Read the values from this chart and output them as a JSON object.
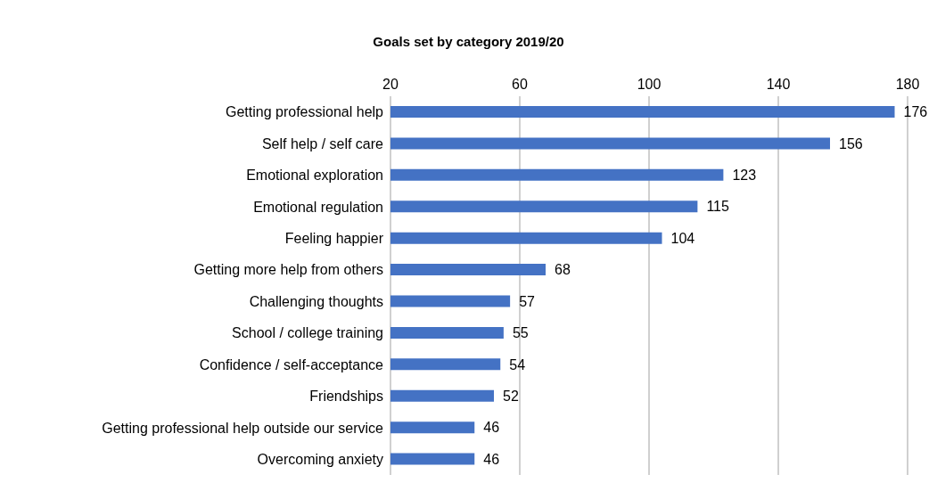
{
  "chart_data": {
    "type": "bar",
    "orientation": "horizontal",
    "title": "Goals set by category 2019/20",
    "categories": [
      "Getting professional help",
      "Self help / self care",
      "Emotional exploration",
      "Emotional regulation",
      "Feeling happier",
      "Getting more help from others",
      "Challenging thoughts",
      "School / college training",
      "Confidence / self-acceptance",
      "Friendships",
      "Getting professional help outside our service",
      "Overcoming anxiety"
    ],
    "values": [
      176,
      156,
      123,
      115,
      104,
      68,
      57,
      55,
      54,
      52,
      46,
      46
    ],
    "color": "#4472c4",
    "xlim": [
      20,
      180
    ],
    "xticks": [
      20,
      60,
      100,
      140,
      180
    ],
    "grid": "x",
    "data_labels": true,
    "legend": false
  }
}
